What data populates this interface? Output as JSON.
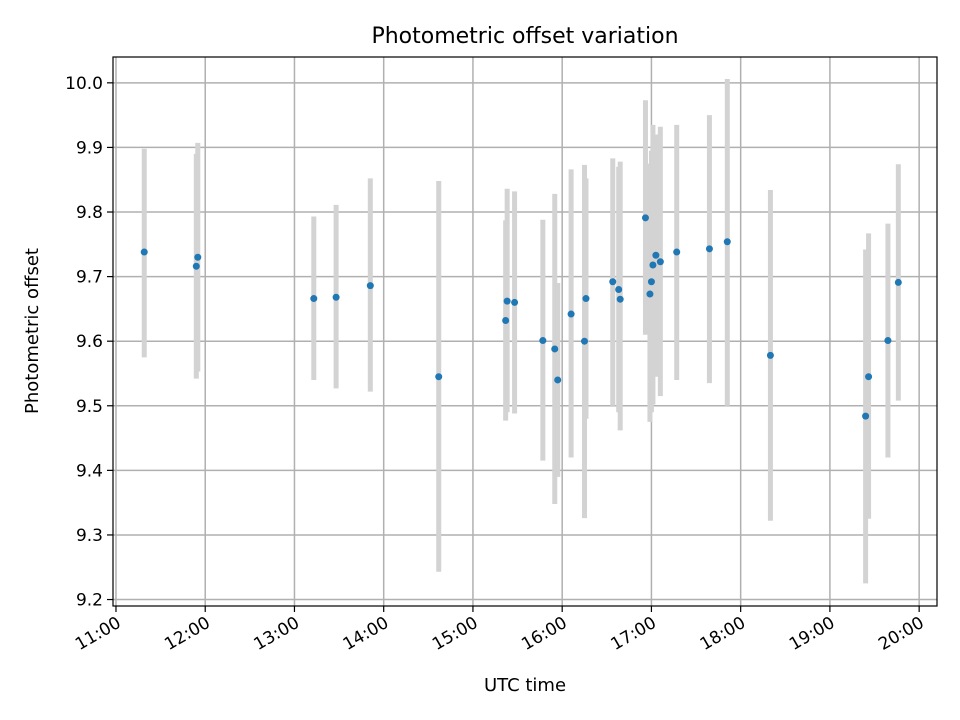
{
  "chart_data": {
    "type": "scatter",
    "title": "Photometric offset variation",
    "xlabel": "UTC time",
    "ylabel": "Photometric offset",
    "xlim": [
      "10:58",
      "20:12"
    ],
    "ylim": [
      9.19,
      10.04
    ],
    "grid": true,
    "x_ticks": [
      "11:00",
      "12:00",
      "13:00",
      "14:00",
      "15:00",
      "16:00",
      "17:00",
      "18:00",
      "19:00",
      "20:00"
    ],
    "y_ticks": [
      9.2,
      9.3,
      9.4,
      9.5,
      9.6,
      9.7,
      9.8,
      9.9,
      10.0
    ],
    "y_tick_labels": [
      "9.2",
      "9.3",
      "9.4",
      "9.5",
      "9.6",
      "9.7",
      "9.8",
      "9.9",
      "10.0"
    ],
    "marker_color": "#1f77b4",
    "errorbar_color": "#d3d3d3",
    "points": [
      {
        "x": "11:19",
        "y": 9.738,
        "y_low": 9.575,
        "y_high": 9.898
      },
      {
        "x": "11:55",
        "y": 9.73,
        "y_low": 9.553,
        "y_high": 9.907
      },
      {
        "x": "11:54",
        "y": 9.716,
        "y_low": 9.542,
        "y_high": 9.89
      },
      {
        "x": "13:13",
        "y": 9.666,
        "y_low": 9.54,
        "y_high": 9.793
      },
      {
        "x": "13:28",
        "y": 9.668,
        "y_low": 9.527,
        "y_high": 9.811
      },
      {
        "x": "13:51",
        "y": 9.686,
        "y_low": 9.522,
        "y_high": 9.852
      },
      {
        "x": "14:37",
        "y": 9.545,
        "y_low": 9.243,
        "y_high": 9.848
      },
      {
        "x": "15:22",
        "y": 9.632,
        "y_low": 9.477,
        "y_high": 9.787
      },
      {
        "x": "15:23",
        "y": 9.662,
        "y_low": 9.49,
        "y_high": 9.836
      },
      {
        "x": "15:28",
        "y": 9.66,
        "y_low": 9.488,
        "y_high": 9.832
      },
      {
        "x": "15:47",
        "y": 9.601,
        "y_low": 9.415,
        "y_high": 9.788
      },
      {
        "x": "15:55",
        "y": 9.588,
        "y_low": 9.348,
        "y_high": 9.828
      },
      {
        "x": "15:57",
        "y": 9.54,
        "y_low": 9.39,
        "y_high": 9.69
      },
      {
        "x": "16:06",
        "y": 9.642,
        "y_low": 9.42,
        "y_high": 9.866
      },
      {
        "x": "16:15",
        "y": 9.6,
        "y_low": 9.326,
        "y_high": 9.873
      },
      {
        "x": "16:16",
        "y": 9.666,
        "y_low": 9.48,
        "y_high": 9.852
      },
      {
        "x": "16:34",
        "y": 9.692,
        "y_low": 9.5,
        "y_high": 9.883
      },
      {
        "x": "16:38",
        "y": 9.68,
        "y_low": 9.49,
        "y_high": 9.87
      },
      {
        "x": "16:39",
        "y": 9.665,
        "y_low": 9.462,
        "y_high": 9.878
      },
      {
        "x": "16:56",
        "y": 9.791,
        "y_low": 9.61,
        "y_high": 9.973
      },
      {
        "x": "16:59",
        "y": 9.673,
        "y_low": 9.475,
        "y_high": 9.875
      },
      {
        "x": "17:00",
        "y": 9.692,
        "y_low": 9.49,
        "y_high": 9.895
      },
      {
        "x": "17:01",
        "y": 9.718,
        "y_low": 9.502,
        "y_high": 9.935
      },
      {
        "x": "17:03",
        "y": 9.733,
        "y_low": 9.545,
        "y_high": 9.92
      },
      {
        "x": "17:06",
        "y": 9.723,
        "y_low": 9.515,
        "y_high": 9.932
      },
      {
        "x": "17:17",
        "y": 9.738,
        "y_low": 9.54,
        "y_high": 9.935
      },
      {
        "x": "17:39",
        "y": 9.743,
        "y_low": 9.535,
        "y_high": 9.95
      },
      {
        "x": "17:51",
        "y": 9.754,
        "y_low": 9.5,
        "y_high": 10.006
      },
      {
        "x": "18:20",
        "y": 9.578,
        "y_low": 9.322,
        "y_high": 9.834
      },
      {
        "x": "19:24",
        "y": 9.484,
        "y_low": 9.225,
        "y_high": 9.742
      },
      {
        "x": "19:26",
        "y": 9.545,
        "y_low": 9.325,
        "y_high": 9.767
      },
      {
        "x": "19:39",
        "y": 9.601,
        "y_low": 9.42,
        "y_high": 9.782
      },
      {
        "x": "19:46",
        "y": 9.691,
        "y_low": 9.508,
        "y_high": 9.874
      }
    ]
  }
}
